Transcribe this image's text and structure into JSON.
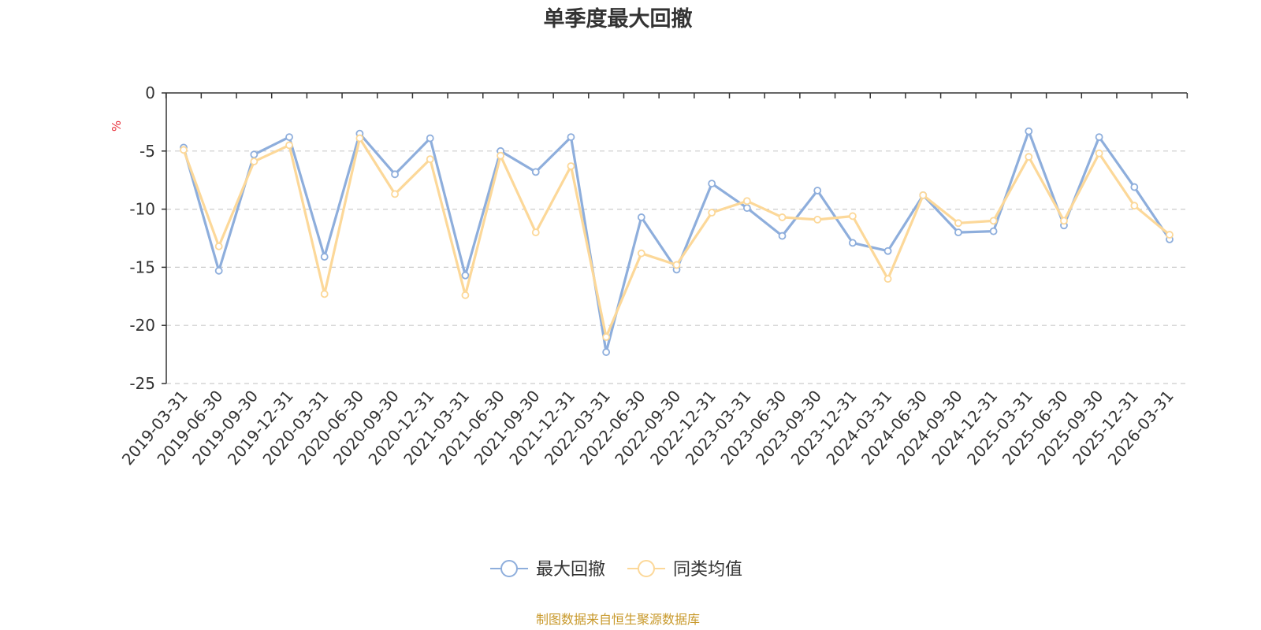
{
  "chart_data": {
    "type": "line",
    "title": "单季度最大回撤",
    "ylabel": "%",
    "ylim": [
      -25,
      0
    ],
    "y_ticks": [
      0,
      -5,
      -10,
      -15,
      -20,
      -25
    ],
    "grid": "horizontal dashed",
    "legend_position": "bottom-center",
    "categories": [
      "2019-03-31",
      "2019-06-30",
      "2019-09-30",
      "2019-12-31",
      "2020-03-31",
      "2020-06-30",
      "2020-09-30",
      "2020-12-31",
      "2021-03-31",
      "2021-06-30",
      "2021-09-30",
      "2021-12-31",
      "2022-03-31",
      "2022-06-30",
      "2022-09-30",
      "2022-12-31",
      "2023-03-31",
      "2023-06-30",
      "2023-09-30",
      "2023-12-31",
      "2024-03-31",
      "2024-06-30",
      "2024-09-30",
      "2024-12-31",
      "2025-03-31",
      "2025-06-30",
      "2025-09-30",
      "2025-12-31",
      "2026-03-31"
    ],
    "series": [
      {
        "name": "最大回撤",
        "color": "#8eaedc",
        "values": [
          -4.7,
          -15.3,
          -5.3,
          -3.8,
          -14.1,
          -3.5,
          -7.0,
          -3.9,
          -15.7,
          -5.0,
          -6.8,
          -3.8,
          -22.3,
          -10.7,
          -15.2,
          -7.8,
          -9.9,
          -12.3,
          -8.4,
          -12.9,
          -13.6,
          -8.8,
          -12.0,
          -11.9,
          -3.3,
          -11.4,
          -3.8,
          -8.1,
          -12.6
        ]
      },
      {
        "name": "同类均值",
        "color": "#fcd899",
        "values": [
          -4.9,
          -13.2,
          -5.9,
          -4.5,
          -17.3,
          -3.9,
          -8.7,
          -5.7,
          -17.4,
          -5.4,
          -12.0,
          -6.3,
          -21.0,
          -13.8,
          -14.8,
          -10.3,
          -9.3,
          -10.7,
          -10.9,
          -10.6,
          -16.0,
          -8.8,
          -11.2,
          -11.0,
          -5.5,
          -11.0,
          -5.2,
          -9.7,
          -12.2
        ]
      }
    ],
    "source": "制图数据来自恒生聚源数据库"
  },
  "colors": {
    "axis": "#333333",
    "grid": "#cccccc",
    "unit_label": "#e8303a",
    "source_text": "#c8992b"
  }
}
